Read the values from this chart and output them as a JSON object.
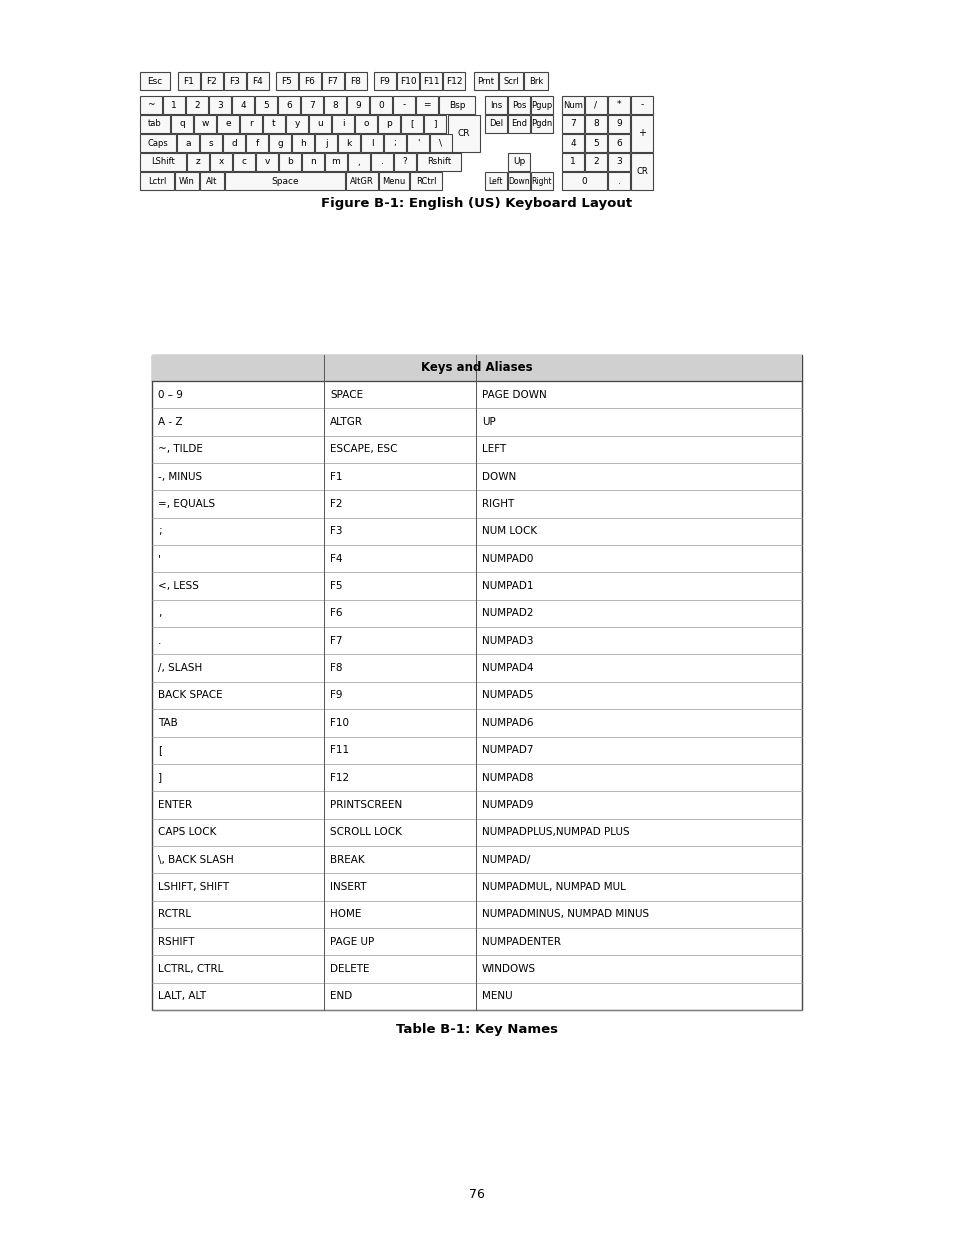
{
  "page_number": "76",
  "figure_caption": "Figure B-1: English (US) Keyboard Layout",
  "table_caption": "Table B-1: Key Names",
  "table_header": "Keys and Aliases",
  "table_rows": [
    [
      "0 – 9",
      "SPACE",
      "PAGE DOWN"
    ],
    [
      "A - Z",
      "ALTGR",
      "UP"
    ],
    [
      "~, TILDE",
      "ESCAPE, ESC",
      "LEFT"
    ],
    [
      "-, MINUS",
      "F1",
      "DOWN"
    ],
    [
      "=, EQUALS",
      "F2",
      "RIGHT"
    ],
    [
      ";",
      "F3",
      "NUM LOCK"
    ],
    [
      "'",
      "F4",
      "NUMPAD0"
    ],
    [
      "<, LESS",
      "F5",
      "NUMPAD1"
    ],
    [
      ",",
      "F6",
      "NUMPAD2"
    ],
    [
      ".",
      "F7",
      "NUMPAD3"
    ],
    [
      "/, SLASH",
      "F8",
      "NUMPAD4"
    ],
    [
      "BACK SPACE",
      "F9",
      "NUMPAD5"
    ],
    [
      "TAB",
      "F10",
      "NUMPAD6"
    ],
    [
      "[",
      "F11",
      "NUMPAD7"
    ],
    [
      "]",
      "F12",
      "NUMPAD8"
    ],
    [
      "ENTER",
      "PRINTSCREEN",
      "NUMPAD9"
    ],
    [
      "CAPS LOCK",
      "SCROLL LOCK",
      "NUMPADPLUS,NUMPAD PLUS"
    ],
    [
      "\\, BACK SLASH",
      "BREAK",
      "NUMPAD/"
    ],
    [
      "LSHIFT, SHIFT",
      "INSERT",
      "NUMPADMUL, NUMPAD MUL"
    ],
    [
      "RCTRL",
      "HOME",
      "NUMPADMINUS, NUMPAD MINUS"
    ],
    [
      "RSHIFT",
      "PAGE UP",
      "NUMPADENTER"
    ],
    [
      "LCTRL, CTRL",
      "DELETE",
      "WINDOWS"
    ],
    [
      "LALT, ALT",
      "END",
      "MENU"
    ]
  ],
  "background_color": "#ffffff"
}
